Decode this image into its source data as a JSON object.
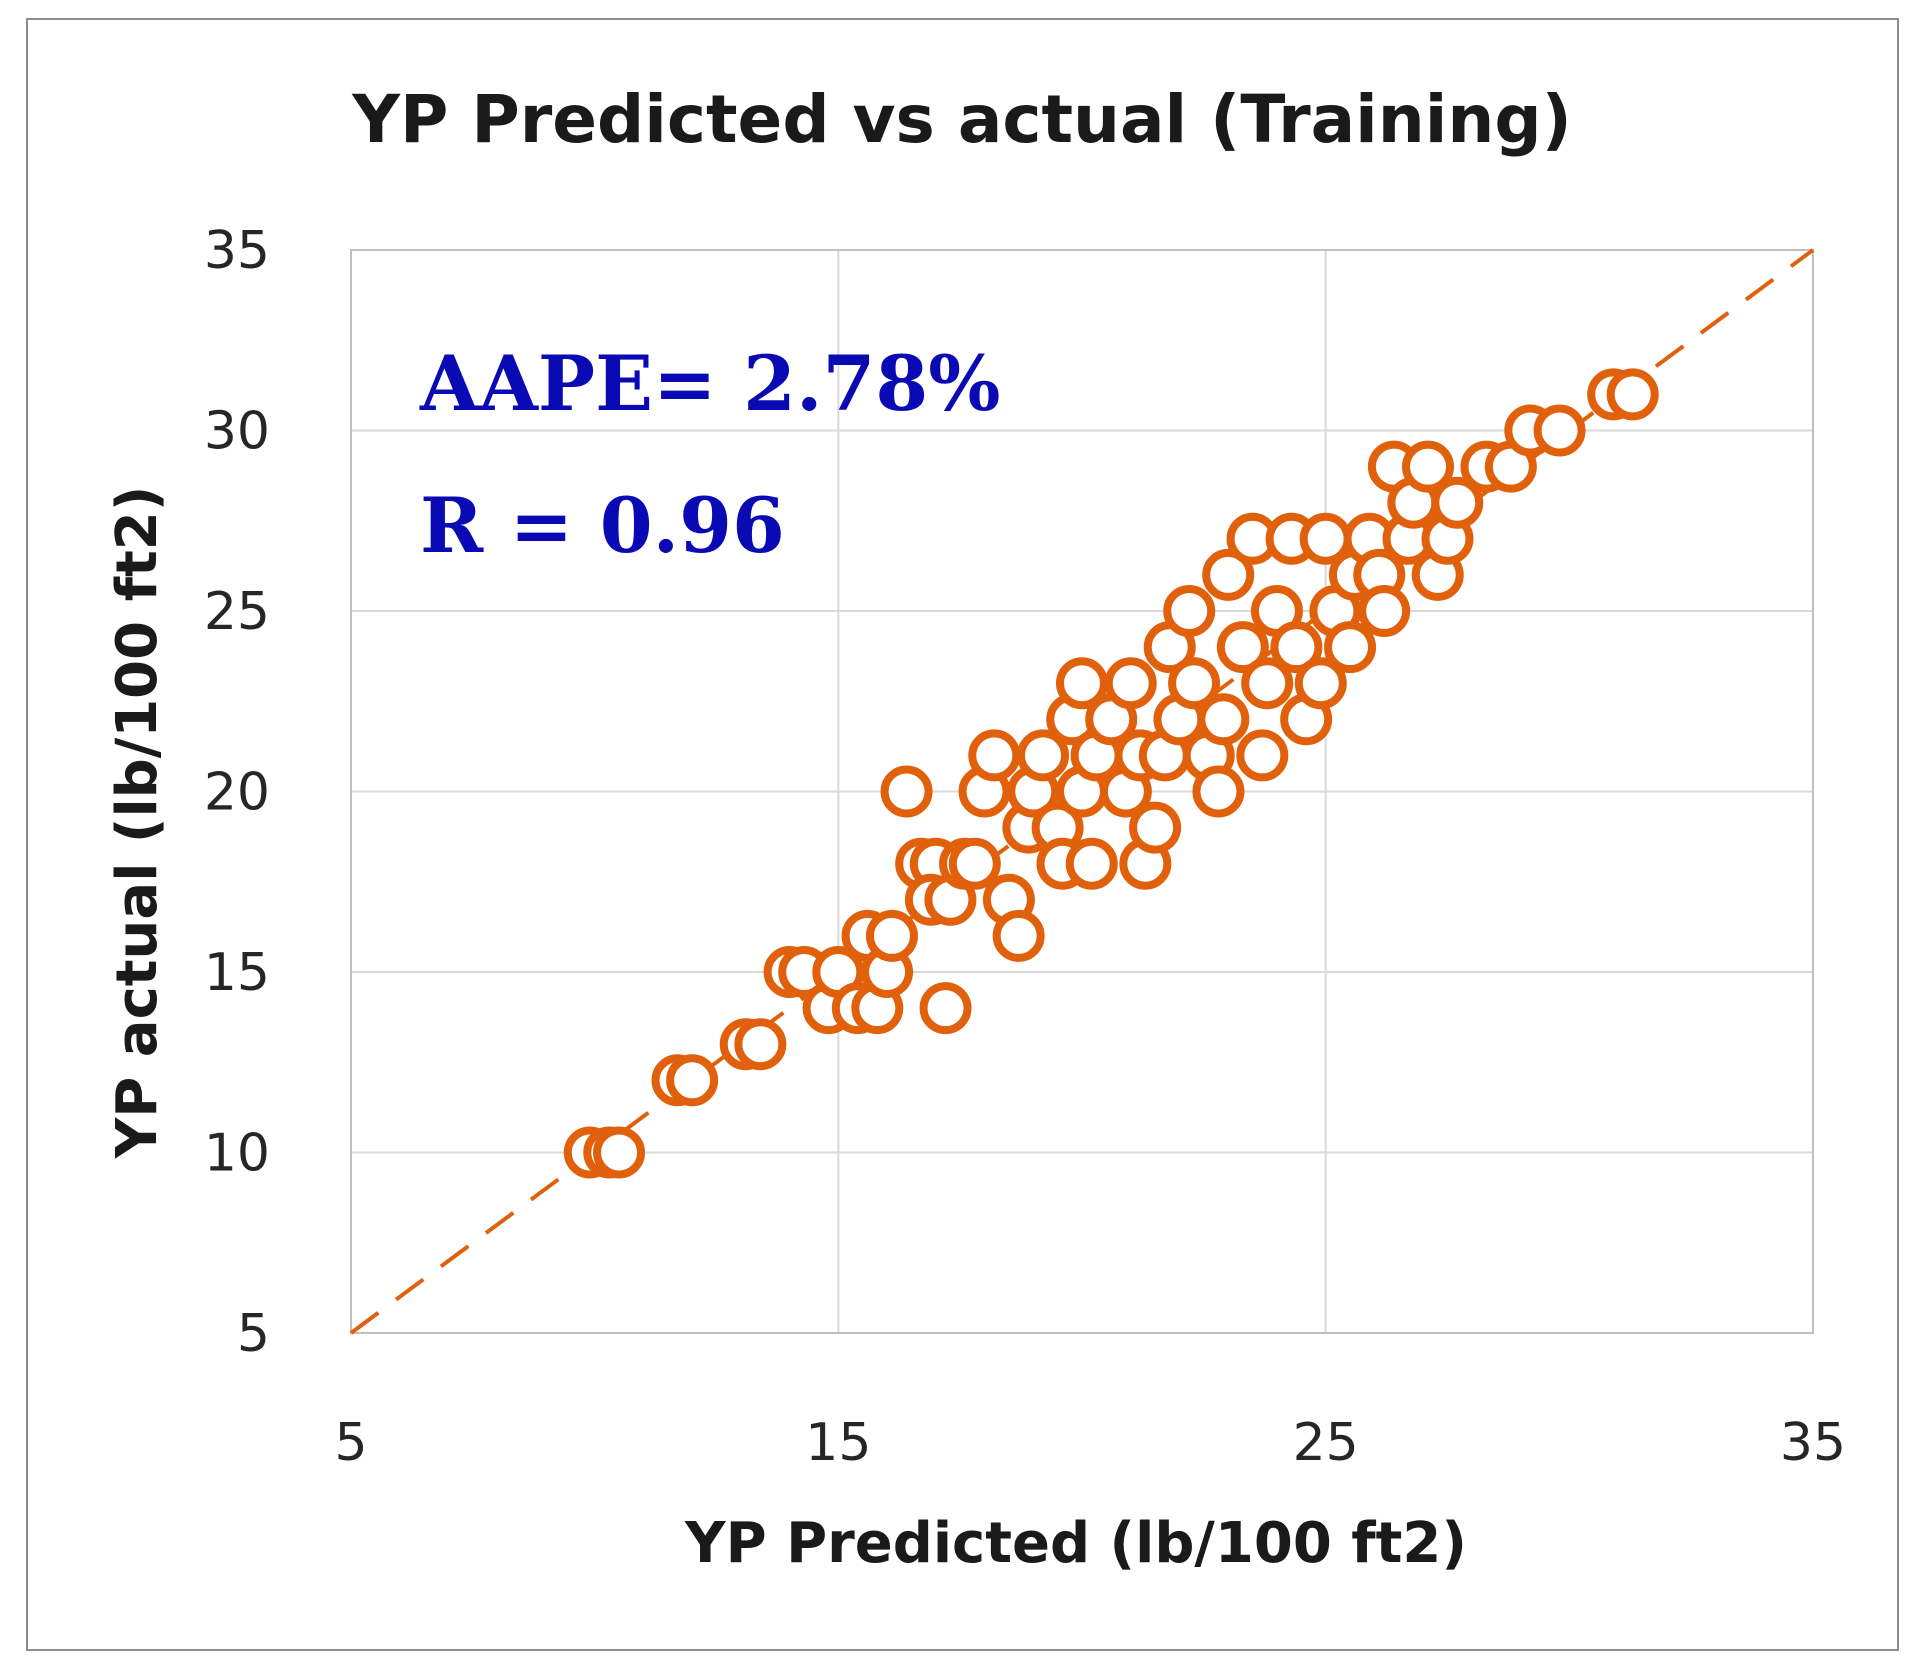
{
  "chart_data": {
    "type": "scatter",
    "title": "YP Predicted vs actual (Training)",
    "xlabel": "YP Predicted (lb/100 ft2)",
    "ylabel": "YP actual (lb/100 ft2)",
    "xlim": [
      5,
      35
    ],
    "ylim": [
      5,
      35
    ],
    "xticks": [
      "5",
      "15",
      "25",
      "35"
    ],
    "yticks": [
      "5",
      "10",
      "15",
      "20",
      "25",
      "30",
      "35"
    ],
    "xtick_values": [
      5,
      15,
      25,
      35
    ],
    "ytick_values": [
      5,
      10,
      15,
      20,
      25,
      30,
      35
    ],
    "grid": true,
    "reference_line": {
      "style": "dashed",
      "from": [
        5,
        5
      ],
      "to": [
        35,
        35
      ]
    },
    "annotations": {
      "aape": "AAPE= 2.78%",
      "r": "R = 0.96"
    },
    "colors": {
      "marker": "#e0600c",
      "annotation": "#0a0ab4"
    },
    "series": [
      {
        "name": "Training",
        "points": [
          [
            9.9,
            10
          ],
          [
            10.3,
            10
          ],
          [
            10.5,
            10
          ],
          [
            11.7,
            12
          ],
          [
            12.0,
            12
          ],
          [
            13.1,
            13
          ],
          [
            13.4,
            13
          ],
          [
            14.0,
            15
          ],
          [
            14.3,
            15
          ],
          [
            14.8,
            14
          ],
          [
            15.0,
            15
          ],
          [
            15.4,
            14
          ],
          [
            15.6,
            16
          ],
          [
            15.8,
            14
          ],
          [
            16.0,
            15
          ],
          [
            16.1,
            16
          ],
          [
            17.2,
            14
          ],
          [
            16.4,
            20
          ],
          [
            16.7,
            18
          ],
          [
            17.0,
            18
          ],
          [
            16.9,
            17
          ],
          [
            17.3,
            17
          ],
          [
            17.6,
            18
          ],
          [
            17.8,
            18
          ],
          [
            18.0,
            20
          ],
          [
            18.2,
            21
          ],
          [
            18.5,
            17
          ],
          [
            18.7,
            16
          ],
          [
            18.9,
            19
          ],
          [
            19.0,
            20
          ],
          [
            19.2,
            21
          ],
          [
            19.5,
            19
          ],
          [
            19.6,
            18
          ],
          [
            19.8,
            22
          ],
          [
            20.0,
            20
          ],
          [
            20.0,
            23
          ],
          [
            20.2,
            18
          ],
          [
            20.3,
            21
          ],
          [
            20.6,
            22
          ],
          [
            20.9,
            20
          ],
          [
            21.2,
            21
          ],
          [
            21.0,
            23
          ],
          [
            21.3,
            18
          ],
          [
            21.5,
            19
          ],
          [
            21.7,
            21
          ],
          [
            21.8,
            24
          ],
          [
            22.0,
            22
          ],
          [
            22.2,
            25
          ],
          [
            22.3,
            23
          ],
          [
            22.6,
            21
          ],
          [
            22.8,
            20
          ],
          [
            22.9,
            22
          ],
          [
            23.0,
            26
          ],
          [
            23.3,
            24
          ],
          [
            23.5,
            27
          ],
          [
            23.7,
            21
          ],
          [
            23.8,
            23
          ],
          [
            24.0,
            25
          ],
          [
            24.3,
            27
          ],
          [
            24.4,
            24
          ],
          [
            24.6,
            22
          ],
          [
            24.9,
            23
          ],
          [
            25.0,
            27
          ],
          [
            25.2,
            25
          ],
          [
            25.5,
            24
          ],
          [
            25.6,
            26
          ],
          [
            25.9,
            27
          ],
          [
            26.1,
            26
          ],
          [
            26.2,
            25
          ],
          [
            26.4,
            29
          ],
          [
            26.7,
            27
          ],
          [
            26.8,
            28
          ],
          [
            27.1,
            29
          ],
          [
            27.3,
            26
          ],
          [
            27.5,
            27
          ],
          [
            27.7,
            28
          ],
          [
            28.3,
            29
          ],
          [
            28.8,
            29
          ],
          [
            29.2,
            30
          ],
          [
            29.8,
            30
          ],
          [
            30.9,
            31
          ],
          [
            31.3,
            31
          ]
        ]
      }
    ]
  }
}
